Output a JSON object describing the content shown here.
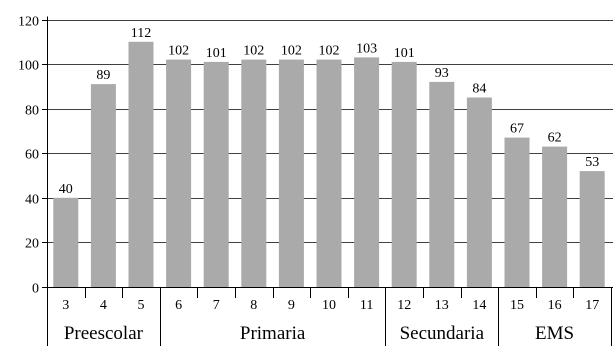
{
  "chart_data": {
    "type": "bar",
    "title": "",
    "xlabel": "",
    "ylabel": "",
    "ylim": [
      0,
      120
    ],
    "yticks": [
      0,
      20,
      40,
      60,
      80,
      100,
      120
    ],
    "grid": true,
    "bar_color": "#aaaaaa",
    "categories": [
      "3",
      "4",
      "5",
      "6",
      "7",
      "8",
      "9",
      "10",
      "11",
      "12",
      "13",
      "14",
      "15",
      "16",
      "17"
    ],
    "values": [
      40,
      89,
      112,
      102,
      101,
      102,
      102,
      102,
      103,
      101,
      93,
      84,
      67,
      62,
      53
    ],
    "bar_heights": [
      40,
      91,
      110,
      102,
      101,
      102,
      102,
      102,
      103,
      101,
      92,
      85,
      67,
      63,
      52
    ],
    "groups": [
      {
        "label": "Preescolar",
        "categories": [
          "3",
          "4",
          "5"
        ]
      },
      {
        "label": "Primaria",
        "categories": [
          "6",
          "7",
          "8",
          "9",
          "10",
          "11"
        ]
      },
      {
        "label": "Secundaria",
        "categories": [
          "12",
          "13",
          "14"
        ]
      },
      {
        "label": "EMS",
        "categories": [
          "15",
          "16",
          "17"
        ]
      }
    ]
  }
}
